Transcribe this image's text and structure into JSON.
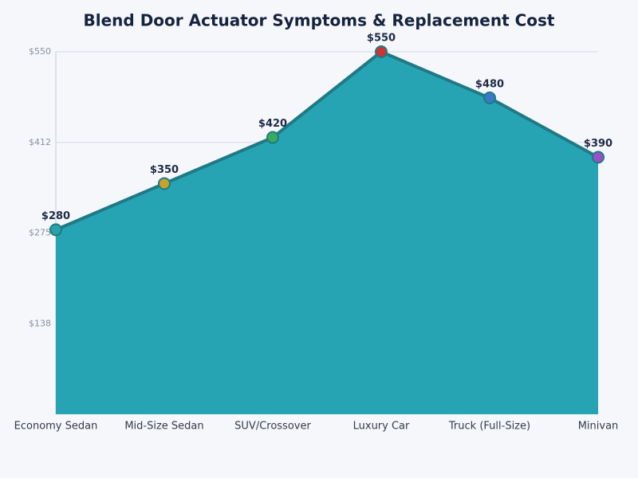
{
  "chart_data": {
    "type": "area",
    "title": "Blend Door Actuator Symptoms & Replacement Cost",
    "categories": [
      "Economy Sedan",
      "Mid-Size Sedan",
      "SUV/Crossover",
      "Luxury Car",
      "Truck (Full-Size)",
      "Minivan"
    ],
    "values": [
      280,
      350,
      420,
      550,
      480,
      390
    ],
    "value_labels": [
      "$280",
      "$350",
      "$420",
      "$550",
      "$480",
      "$390"
    ],
    "color": "#27a4b3",
    "line_color": "#1f7a85",
    "point_colors": [
      "#2aa3a8",
      "#c9a227",
      "#3aaa5c",
      "#cc3333",
      "#3a78c8",
      "#9b4fc8"
    ],
    "ylim": [
      0,
      550
    ],
    "yticks": [
      {
        "value": 137.5,
        "label": "$138"
      },
      {
        "value": 275,
        "label": "$275"
      },
      {
        "value": 412.5,
        "label": "$412"
      },
      {
        "value": 550,
        "label": "$550"
      }
    ],
    "grid": true
  }
}
